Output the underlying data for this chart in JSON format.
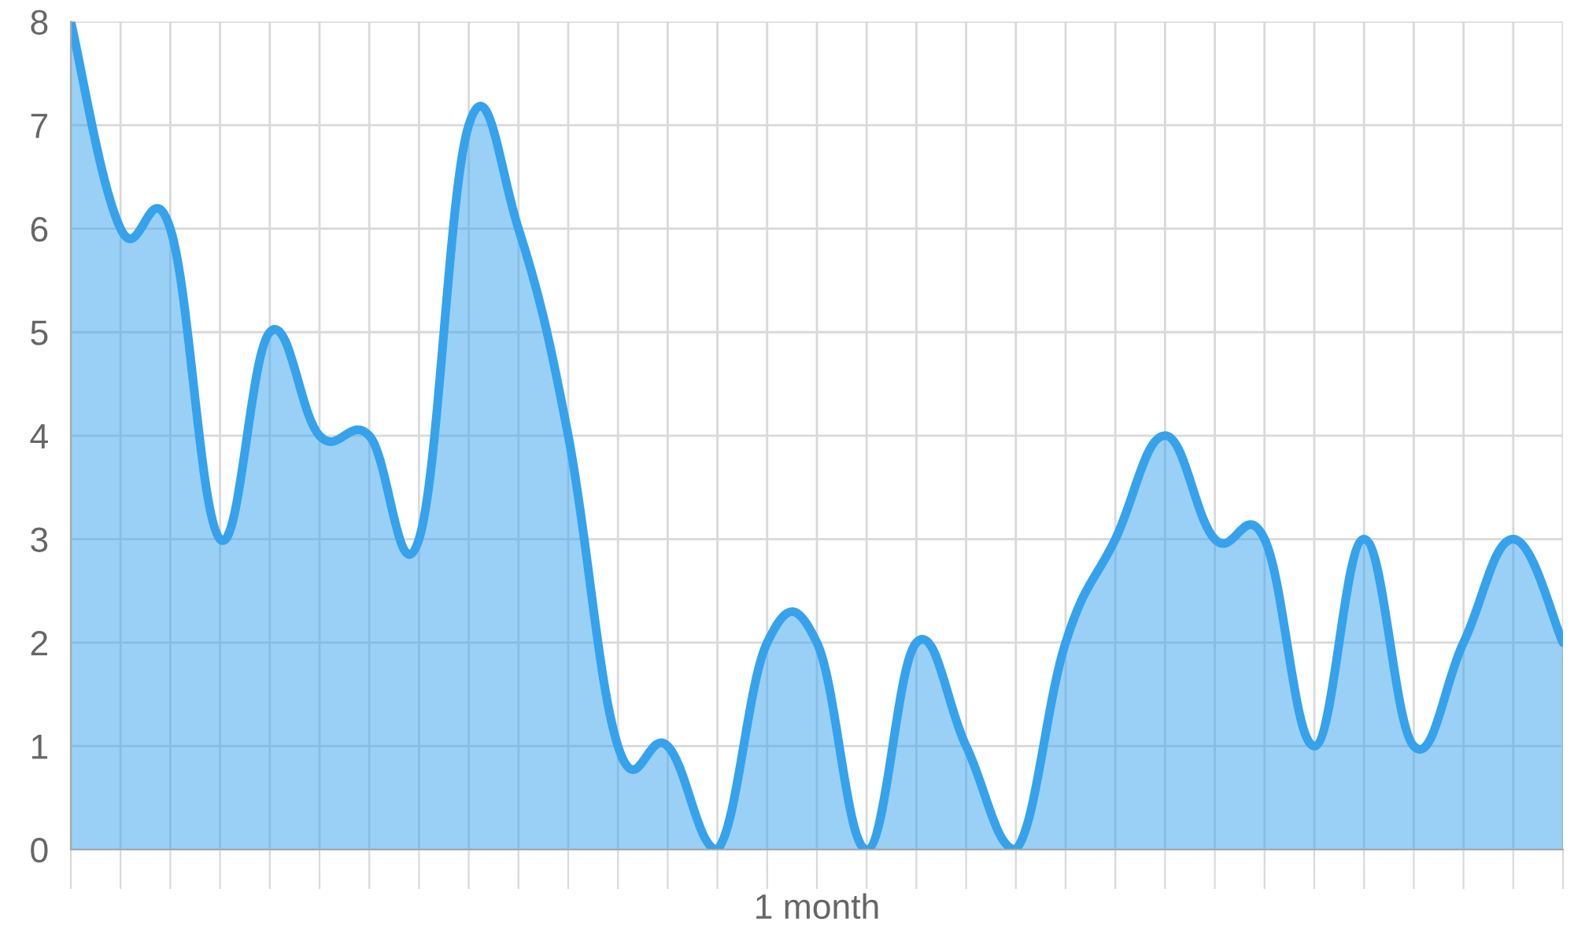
{
  "chart_data": {
    "type": "area",
    "categories": [
      null,
      null,
      null,
      null,
      null,
      null,
      null,
      null,
      null,
      null,
      null,
      null,
      null,
      null,
      null,
      "1 month",
      null,
      null,
      null,
      null,
      null,
      null,
      null,
      null,
      null,
      null,
      null,
      null,
      null,
      null,
      null
    ],
    "series": [
      {
        "color": "#36a2eb",
        "values": [
          8,
          6,
          6,
          3,
          5,
          4,
          4,
          3,
          7,
          6,
          4,
          1,
          1,
          0,
          2,
          2,
          0,
          2,
          1,
          0,
          2,
          3,
          4,
          3,
          3,
          1,
          3,
          1,
          2,
          3,
          2
        ]
      }
    ],
    "ylim": [
      0,
      8
    ],
    "yticks": [
      0,
      1,
      2,
      3,
      4,
      5,
      6,
      7,
      8
    ],
    "grid": true
  }
}
